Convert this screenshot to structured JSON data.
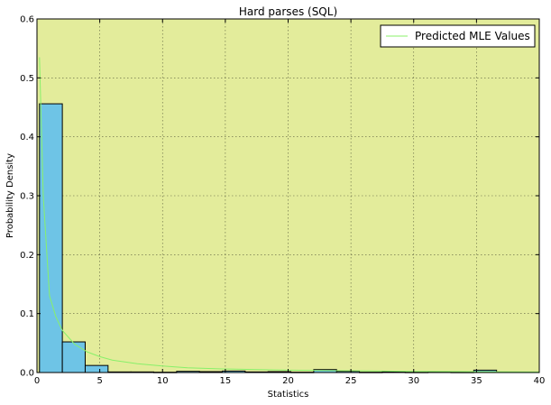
{
  "chart_data": {
    "type": "bar",
    "title": "Hard parses (SQL)",
    "xlabel": "Statistics",
    "ylabel": "Probability Density",
    "xlim": [
      0,
      40
    ],
    "ylim": [
      0,
      0.6
    ],
    "xticks": [
      0,
      5,
      10,
      15,
      20,
      25,
      30,
      35,
      40
    ],
    "yticks": [
      0.0,
      0.1,
      0.2,
      0.3,
      0.4,
      0.5,
      0.6
    ],
    "grid": true,
    "legend_position": "top-right",
    "colors": {
      "plot_background": "#e3ec9b",
      "bar_fill": "#6ec4e6",
      "bar_edge": "#000000",
      "line": "#88f06a"
    },
    "histogram": {
      "bin_width": 1.82,
      "bins": [
        {
          "x0": 0.2,
          "value": 0.456
        },
        {
          "x0": 2.02,
          "value": 0.052
        },
        {
          "x0": 3.84,
          "value": 0.012
        },
        {
          "x0": 5.66,
          "value": 0.001
        },
        {
          "x0": 7.48,
          "value": 0.001
        },
        {
          "x0": 9.3,
          "value": 0.0005
        },
        {
          "x0": 11.12,
          "value": 0.002
        },
        {
          "x0": 12.94,
          "value": 0.0015
        },
        {
          "x0": 14.76,
          "value": 0.0025
        },
        {
          "x0": 16.58,
          "value": 0.001
        },
        {
          "x0": 18.4,
          "value": 0.0015
        },
        {
          "x0": 20.22,
          "value": 0.0005
        },
        {
          "x0": 22.04,
          "value": 0.005
        },
        {
          "x0": 23.86,
          "value": 0.002
        },
        {
          "x0": 25.68,
          "value": 0.0005
        },
        {
          "x0": 27.5,
          "value": 0.0015
        },
        {
          "x0": 29.32,
          "value": 0.0005
        },
        {
          "x0": 31.14,
          "value": 0.0015
        },
        {
          "x0": 32.96,
          "value": 0.0005
        },
        {
          "x0": 34.78,
          "value": 0.004
        }
      ]
    },
    "series": [
      {
        "name": "Predicted MLE Values",
        "x": [
          0.2,
          0.5,
          1,
          1.5,
          2,
          3,
          4,
          5,
          6,
          8,
          10,
          12,
          15,
          20,
          25,
          30,
          35,
          40
        ],
        "y": [
          0.535,
          0.3,
          0.13,
          0.095,
          0.072,
          0.048,
          0.035,
          0.027,
          0.021,
          0.015,
          0.011,
          0.008,
          0.006,
          0.004,
          0.003,
          0.002,
          0.0015,
          0.001
        ]
      }
    ]
  }
}
